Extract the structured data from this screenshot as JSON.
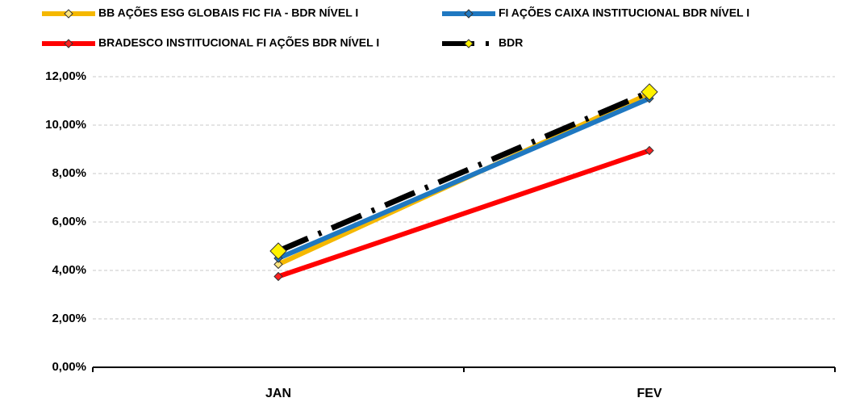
{
  "chart_data": {
    "type": "line",
    "categories": [
      "JAN",
      "FEV"
    ],
    "series": [
      {
        "name": "BB AÇÕES ESG GLOBAIS FIC FIA - BDR NÍVEL I",
        "color": "#F5B800",
        "marker_color": "#FFE680",
        "values": [
          4.25,
          11.3
        ]
      },
      {
        "name": "FI AÇÕES CAIXA INSTITUCIONAL BDR NÍVEL I",
        "color": "#1F78C1",
        "marker_color": "#1F78C1",
        "values": [
          4.5,
          11.1
        ]
      },
      {
        "name": "BRADESCO INSTITUCIONAL FI AÇÕES BDR NÍVEL I",
        "color": "#FF0000",
        "marker_color": "#FF2020",
        "values": [
          3.75,
          8.95
        ]
      },
      {
        "name": "BDR",
        "color": "#000000",
        "marker_color": "#FFF200",
        "dashed": true,
        "values": [
          4.8,
          11.37
        ]
      }
    ],
    "ylim": [
      0,
      12
    ],
    "yticks": [
      {
        "value": 0,
        "label": "0,00%"
      },
      {
        "value": 2,
        "label": "2,00%"
      },
      {
        "value": 4,
        "label": "4,00%"
      },
      {
        "value": 6,
        "label": "6,00%"
      },
      {
        "value": 8,
        "label": "8,00%"
      },
      {
        "value": 10,
        "label": "10,00%"
      },
      {
        "value": 12,
        "label": "12,00%"
      }
    ],
    "grid": true
  }
}
